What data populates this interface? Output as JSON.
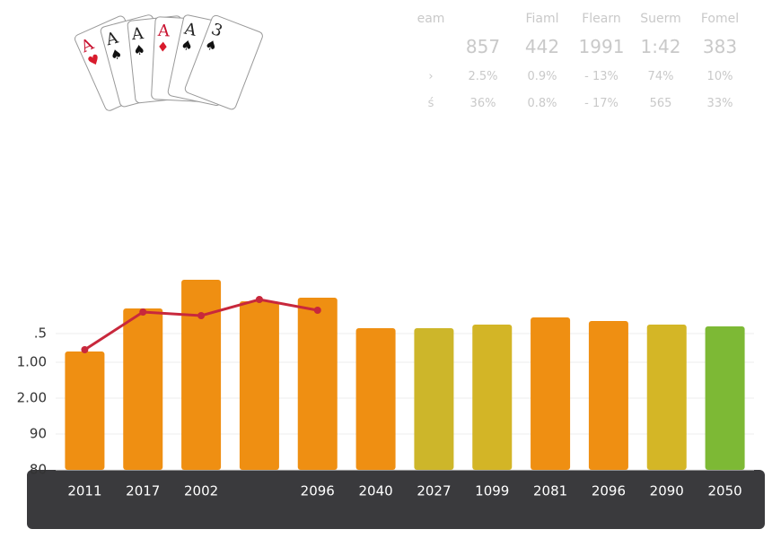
{
  "cards": [
    "A",
    "A",
    "A",
    "A",
    "A",
    "3"
  ],
  "stats": {
    "header_label": "eam",
    "headers": [
      "Fiaml",
      "Flearn",
      "Suerm",
      "Fomel"
    ],
    "rows": [
      {
        "values": [
          "857",
          "442",
          "1991",
          "1:42",
          "383"
        ]
      },
      {
        "label": "›",
        "values": [
          "2.5%",
          "0.9%",
          "- 13%",
          "74%",
          "10%"
        ]
      },
      {
        "label": "ś",
        "values": [
          "36%",
          "0.8%",
          "- 17%",
          "565",
          "33%"
        ]
      }
    ]
  },
  "chart_data": {
    "type": "bar",
    "categories": [
      "2011",
      "2017",
      "2002",
      null,
      "2096",
      "2040",
      "2027",
      "1099",
      "2081",
      "2096",
      "2090",
      "2050"
    ],
    "values": [
      113,
      125,
      133,
      127,
      128,
      119.5,
      119.5,
      120.5,
      122.5,
      121.5,
      120.5,
      120
    ],
    "colors": [
      "#ef8f12",
      "#ef8f12",
      "#ef8f12",
      "#ef8f12",
      "#ef8f12",
      "#ef8f12",
      "#cdb62a",
      "#d3b526",
      "#ef8f12",
      "#ef8f12",
      "#d4b626",
      "#7db935"
    ],
    "line": {
      "color": "#c8283c",
      "values": [
        113.5,
        124,
        123,
        127.5,
        124.5,
        null,
        null,
        null,
        null,
        null,
        null,
        null
      ]
    },
    "ylim": [
      80,
      135
    ],
    "yticks": [
      80,
      90,
      {
        "value": 100,
        "label": "2.00"
      },
      {
        "value": 110,
        "label": "1.00"
      },
      {
        "value": 118,
        "label": ".5"
      }
    ],
    "grid": true
  }
}
